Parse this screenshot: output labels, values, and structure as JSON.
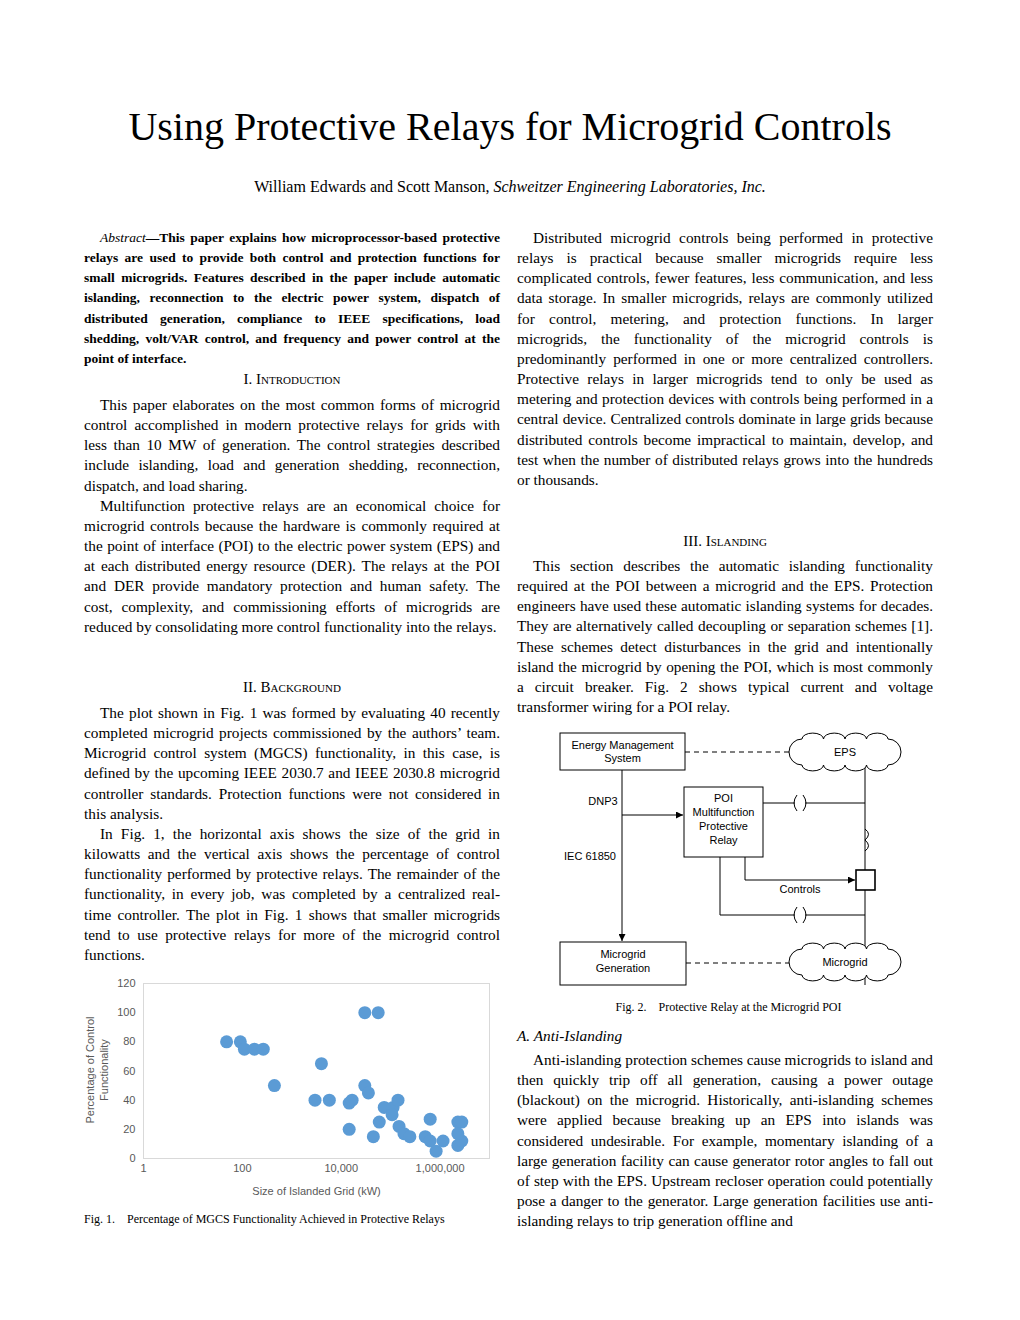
{
  "title": "Using Protective Relays for Microgrid Controls",
  "authors": "William Edwards and Scott Manson,",
  "affiliation": "Schweitzer Engineering Laboratories, Inc.",
  "abstract": {
    "label": "Abstract",
    "text": "—This paper explains how microprocessor-based protective relays are used to provide both control and protection functions for small microgrids. Features described in the paper include automatic islanding, reconnection to the electric power system, dispatch of distributed generation, compliance to IEEE specifications, load shedding, volt/VAR control, and frequency and power control at the point of interface."
  },
  "sections": [
    {
      "number": "I.",
      "title": "Introduction",
      "paragraphs": [
        "This paper elaborates on the most common forms of microgrid control accomplished in modern protective relays for grids with less than 10 MW of generation. The control strategies described include islanding, load and generation shedding, reconnection, dispatch, and load sharing.",
        "Multifunction protective relays are an economical choice for microgrid controls because the hardware is commonly required at the point of interface (POI) to the electric power system (EPS) and at each distributed energy resource (DER). The relays at the POI and DER provide mandatory protection and human safety. The cost, complexity, and commissioning efforts of microgrids are reduced by consolidating more control functionality into the relays."
      ]
    },
    {
      "number": "II.",
      "title": "Background",
      "paragraphs": [
        "The plot shown in Fig. 1 was formed by evaluating 40 recently completed microgrid projects commissioned by the authors’ team. Microgrid control system (MGCS) functionality, in this case, is defined by the upcoming IEEE 2030.7 and IEEE 2030.8 microgrid controller standards. Protection functions were not considered in this analysis.",
        "In Fig. 1, the horizontal axis shows the size of the grid in kilowatts and the vertical axis shows the percentage of control functionality performed by protective relays. The remainder of the functionality, in every job, was completed by a centralized real-time controller. The plot in Fig. 1 shows that smaller microgrids tend to use protective relays for more of the microgrid control functions.",
        "Distributed microgrid controls being performed in protective relays is practical because smaller microgrids require less complicated controls, fewer features, less communication, and less data storage. In smaller microgrids, relays are commonly utilized for control, metering, and protection functions. In larger microgrids, the functionality of the microgrid controls is predominantly performed in one or more centralized controllers. Protective relays in larger microgrids tend to only be used as metering and protection devices with controls being performed in a central device. Centralized controls dominate in large grids because distributed controls become impractical to maintain, develop, and test when the number of distributed relays grows into the hundreds or thousands."
      ]
    },
    {
      "number": "III.",
      "title": "Islanding",
      "paragraphs": [
        "This section describes the automatic islanding functionality required at the POI between a microgrid and the EPS. Protection engineers have used these automatic islanding systems for decades. They are alternatively called decoupling or separation schemes [1]. These schemes detect disturbances in the grid and intentionally island the microgrid by opening the POI, which is most commonly a circuit breaker. Fig. 2 shows typical current and voltage transformer wiring for a POI relay."
      ],
      "subsections": [
        {
          "number": "A.",
          "title": "Anti-Islanding",
          "paragraphs": [
            "Anti-islanding protection schemes cause microgrids to island and then quickly trip off all generation, causing a power outage (blackout) on the microgrid. Historically, anti-islanding schemes were applied because breaking up an EPS into islands was considered undesirable. For example, momentary islanding of a large generation facility can cause generator rotor angles to fall out of step with the EPS. Upstream recloser operation could potentially pose a danger to the generator. Large generation facilities use anti-islanding relays to trip generation offline and"
          ]
        }
      ]
    }
  ],
  "figure_1": {
    "number": "Fig. 1.",
    "caption": "Percentage of MGCS Functionality Achieved in Protective Relays"
  },
  "chart_data": {
    "type": "scatter",
    "x_label": "Size of Islanded Grid (kW)",
    "y_label": "Percentage of Control Functionality",
    "x": [
      48,
      91,
      110,
      175,
      265,
      445,
      2950,
      3980,
      5750,
      14500,
      14500,
      16600,
      30000,
      56000,
      30000,
      35500,
      44700,
      58900,
      74100,
      112000,
      141000,
      107000,
      148000,
      186000,
      245000,
      501000,
      631000,
      631000,
      1150000,
      832000,
      2290000,
      2750000,
      2290000,
      2750000,
      2290000
    ],
    "values": [
      80,
      80,
      75,
      75,
      75,
      50,
      40,
      65,
      40,
      20,
      38,
      40,
      100,
      100,
      50,
      45,
      15,
      25,
      35,
      35,
      40,
      30,
      22,
      17,
      15,
      15,
      27,
      12,
      12,
      5,
      25,
      25,
      9,
      12,
      17
    ],
    "color": "#5b9bd5",
    "marker": "circle",
    "log": "x",
    "xlim": [
      1,
      10000000
    ],
    "xticks": [
      1,
      100,
      {
        "value": 10000,
        "label": "10,000"
      },
      {
        "value": 1000000,
        "label": "1,000,000"
      }
    ],
    "ylim": [
      0,
      120
    ],
    "yticks": [
      0,
      20,
      40,
      60,
      80,
      100,
      120
    ],
    "grid": false
  },
  "figure_2": {
    "number": "Fig. 2.",
    "caption": "Protective Relay at the Microgrid POI",
    "diagram": {
      "nodes": [
        {
          "id": "ems",
          "lines": [
            "Energy Management",
            "System"
          ]
        },
        {
          "id": "eps",
          "lines": [
            "EPS"
          ]
        },
        {
          "id": "relay",
          "lines": [
            "POI",
            "Multifunction",
            "Protective",
            "Relay"
          ]
        },
        {
          "id": "gen",
          "lines": [
            "Microgrid",
            "Generation"
          ]
        },
        {
          "id": "microgrid",
          "lines": [
            "Microgrid"
          ]
        }
      ],
      "edge_labels": {
        "dnp3": "DNP3",
        "iec": "IEC 61850",
        "controls": "Controls"
      }
    }
  }
}
